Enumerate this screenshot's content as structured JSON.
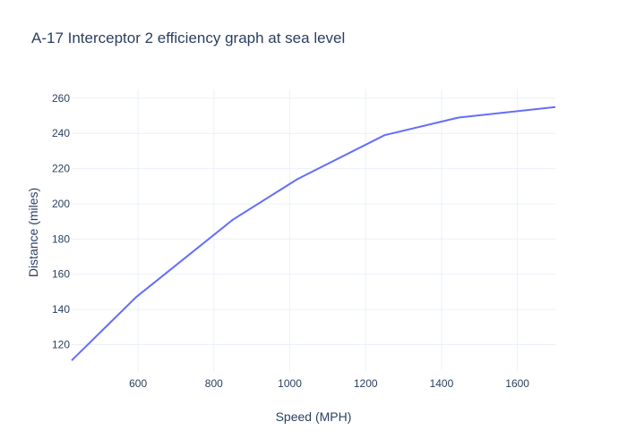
{
  "chart_data": {
    "type": "line",
    "title": "A-17 Interceptor 2 efficiency graph at sea level",
    "xlabel": "Speed (MPH)",
    "ylabel": "Distance (miles)",
    "xlim": [
      425,
      1700
    ],
    "ylim": [
      105,
      265
    ],
    "xticks": [
      600,
      800,
      1000,
      1200,
      1400,
      1600
    ],
    "yticks": [
      120,
      140,
      160,
      180,
      200,
      220,
      240,
      260
    ],
    "grid": true,
    "series": [
      {
        "color": "#636efa",
        "x": [
          425,
          595,
          850,
          1020,
          1250,
          1445,
          1700
        ],
        "y": [
          111,
          147,
          191,
          214,
          239,
          249,
          255
        ]
      }
    ]
  }
}
